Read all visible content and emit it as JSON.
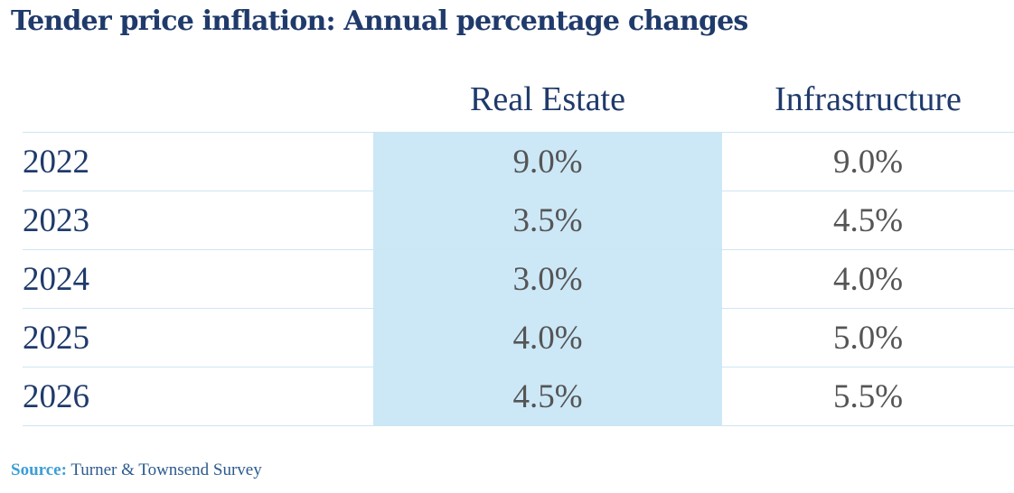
{
  "title": "Tender price inflation: Annual percentage changes",
  "chart_data": {
    "type": "table",
    "columns": [
      "",
      "Real Estate",
      "Infrastructure"
    ],
    "rows": [
      {
        "year": "2022",
        "real_estate": "9.0%",
        "infrastructure": "9.0%"
      },
      {
        "year": "2023",
        "real_estate": "3.5%",
        "infrastructure": "4.5%"
      },
      {
        "year": "2024",
        "real_estate": "3.0%",
        "infrastructure": "4.0%"
      },
      {
        "year": "2025",
        "real_estate": "4.0%",
        "infrastructure": "5.0%"
      },
      {
        "year": "2026",
        "real_estate": "4.5%",
        "infrastructure": "5.5%"
      }
    ],
    "highlight_column": "Real Estate",
    "highlight_color": "#cce8f7"
  },
  "source": {
    "label": "Source:",
    "text": "Turner & Townsend Survey"
  },
  "colors": {
    "title": "#1f3a6b",
    "cell_text": "#555555",
    "source_label": "#3d9ed6",
    "rule": "#cde6f3"
  }
}
